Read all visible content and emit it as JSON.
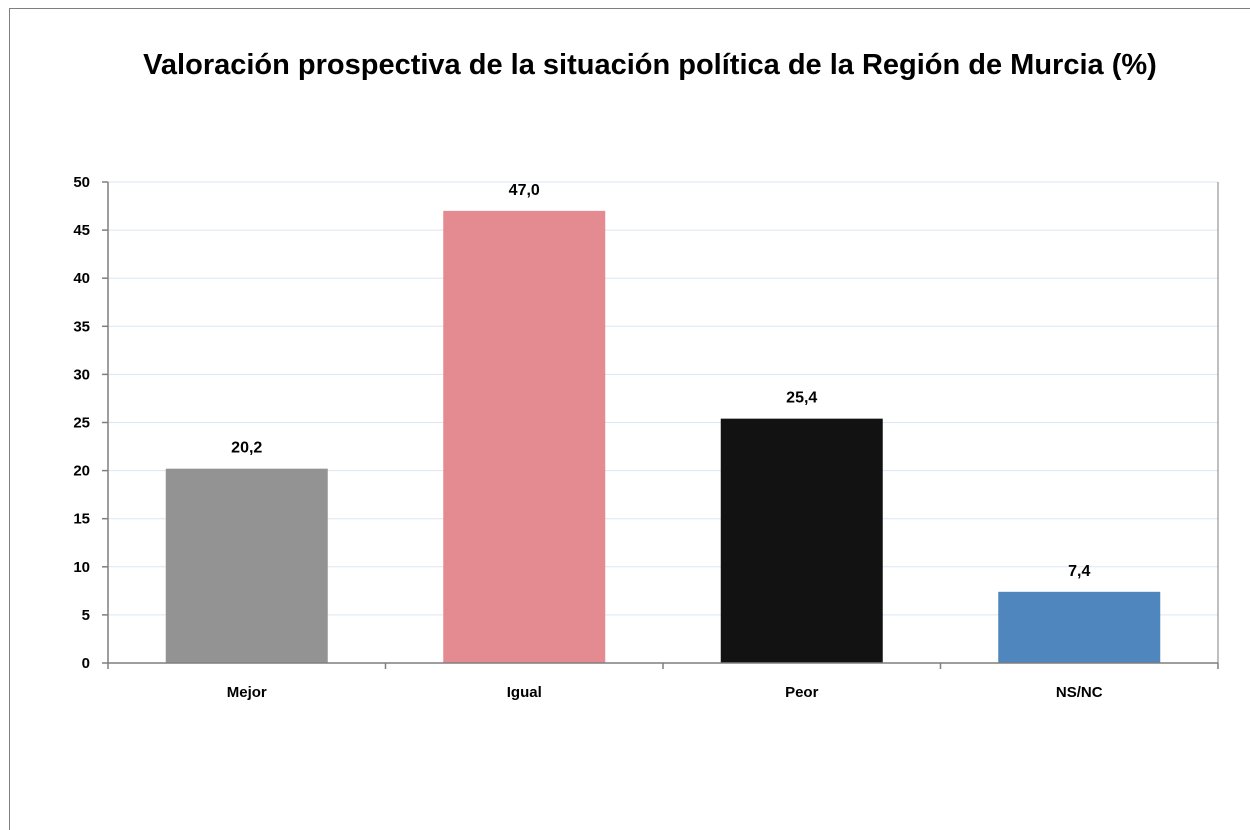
{
  "chart_data": {
    "type": "bar",
    "title": "Valoración prospectiva de la situación política de la Región de Murcia (%)",
    "xlabel": "",
    "ylabel": "",
    "ylim": [
      0,
      50
    ],
    "yticks": [
      0,
      5,
      10,
      15,
      20,
      25,
      30,
      35,
      40,
      45,
      50
    ],
    "grid": true,
    "legend": "none",
    "categories": [
      "Mejor",
      "Igual",
      "Peor",
      "NS/NC"
    ],
    "values": [
      20.2,
      47.0,
      25.4,
      7.4
    ],
    "data_labels": [
      "20,2",
      "47,0",
      "25,4",
      "7,4"
    ],
    "colors": [
      "#939393",
      "#e48a91",
      "#121212",
      "#4f86bd"
    ],
    "grid_color": "#dbe6f0",
    "axis_color": "#7f7f7f"
  }
}
